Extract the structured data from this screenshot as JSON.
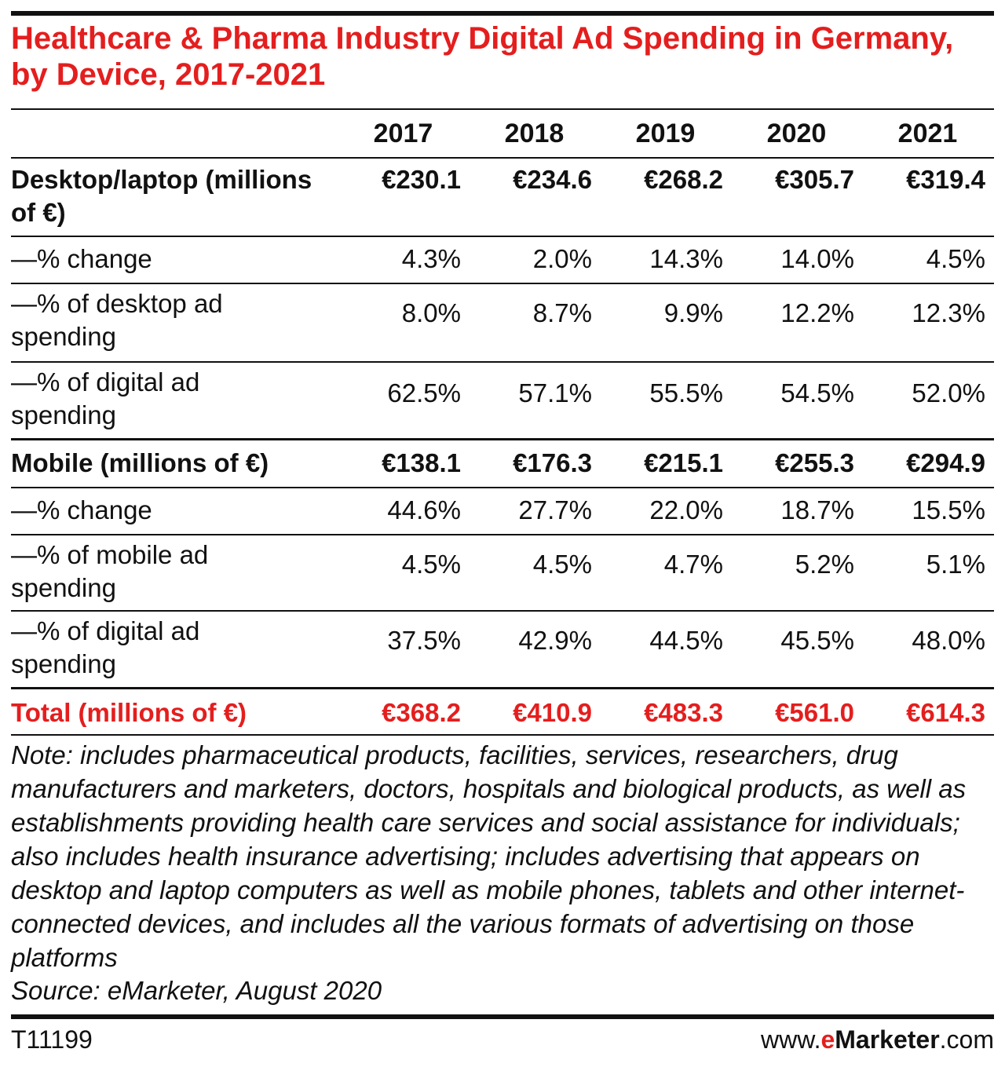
{
  "title": "Healthcare & Pharma Industry Digital Ad Spending in Germany, by Device, 2017-2021",
  "years": [
    "2017",
    "2018",
    "2019",
    "2020",
    "2021"
  ],
  "rows": [
    {
      "label": "Desktop/laptop (millions of €)",
      "values": [
        "€230.1",
        "€234.6",
        "€268.2",
        "€305.7",
        "€319.4"
      ]
    },
    {
      "label": "—% change",
      "values": [
        "4.3%",
        "2.0%",
        "14.3%",
        "14.0%",
        "4.5%"
      ]
    },
    {
      "label": "—% of desktop ad spending",
      "values": [
        "8.0%",
        "8.7%",
        "9.9%",
        "12.2%",
        "12.3%"
      ]
    },
    {
      "label": "—% of digital ad spending",
      "values": [
        "62.5%",
        "57.1%",
        "55.5%",
        "54.5%",
        "52.0%"
      ]
    },
    {
      "label": "Mobile (millions of €)",
      "values": [
        "€138.1",
        "€176.3",
        "€215.1",
        "€255.3",
        "€294.9"
      ]
    },
    {
      "label": "—% change",
      "values": [
        "44.6%",
        "27.7%",
        "22.0%",
        "18.7%",
        "15.5%"
      ]
    },
    {
      "label": "—% of mobile ad spending",
      "values": [
        "4.5%",
        "4.5%",
        "4.7%",
        "5.2%",
        "5.1%"
      ]
    },
    {
      "label": "—% of digital ad spending",
      "values": [
        "37.5%",
        "42.9%",
        "44.5%",
        "45.5%",
        "48.0%"
      ]
    },
    {
      "label": "Total (millions of €)",
      "values": [
        "€368.2",
        "€410.9",
        "€483.3",
        "€561.0",
        "€614.3"
      ]
    }
  ],
  "note": "Note: includes pharmaceutical products, facilities, services, researchers, drug manufacturers and marketers, doctors, hospitals and biological products, as well as establishments providing health care services and social assistance for individuals; also includes health insurance advertising; includes advertising that appears on desktop and laptop computers as well as mobile phones, tablets and other internet-connected devices, and includes all the various formats of advertising on those platforms",
  "source": "Source: eMarketer, August 2020",
  "chart_id": "T11199",
  "brand": {
    "prefix": "www.",
    "e": "e",
    "name": "Marketer",
    "suffix": ".com"
  },
  "colors": {
    "accent": "#e41e1e",
    "text": "#111111"
  },
  "chart_data": {
    "type": "table",
    "title": "Healthcare & Pharma Industry Digital Ad Spending in Germany, by Device, 2017-2021",
    "columns": [
      "2017",
      "2018",
      "2019",
      "2020",
      "2021"
    ],
    "rows": [
      {
        "label": "Desktop/laptop (millions of €)",
        "values": [
          230.1,
          234.6,
          268.2,
          305.7,
          319.4
        ]
      },
      {
        "label": "—% change",
        "values": [
          4.3,
          2.0,
          14.3,
          14.0,
          4.5
        ]
      },
      {
        "label": "—% of desktop ad spending",
        "values": [
          8.0,
          8.7,
          9.9,
          12.2,
          12.3
        ]
      },
      {
        "label": "—% of digital ad spending",
        "values": [
          62.5,
          57.1,
          55.5,
          54.5,
          52.0
        ]
      },
      {
        "label": "Mobile (millions of €)",
        "values": [
          138.1,
          176.3,
          215.1,
          255.3,
          294.9
        ]
      },
      {
        "label": "—% change",
        "values": [
          44.6,
          27.7,
          22.0,
          18.7,
          15.5
        ]
      },
      {
        "label": "—% of mobile ad spending",
        "values": [
          4.5,
          4.5,
          4.7,
          5.2,
          5.1
        ]
      },
      {
        "label": "—% of digital ad spending",
        "values": [
          37.5,
          42.9,
          44.5,
          45.5,
          48.0
        ]
      },
      {
        "label": "Total (millions of €)",
        "values": [
          368.2,
          410.9,
          483.3,
          561.0,
          614.3
        ]
      }
    ]
  }
}
